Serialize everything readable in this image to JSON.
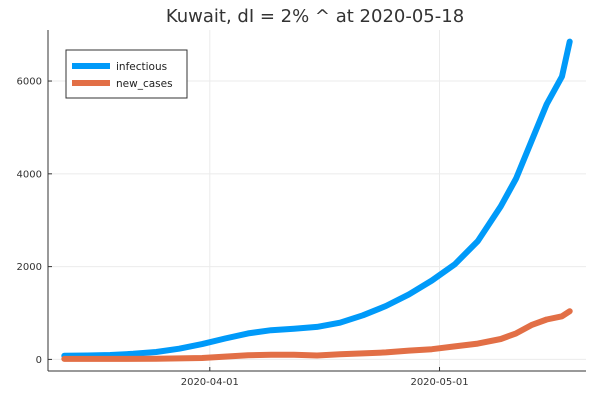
{
  "chart_data": {
    "type": "line",
    "title": "Kuwait,  dI = 2% ^ at 2020-05-18",
    "xlabel": "",
    "ylabel": "",
    "x_range": [
      "2020-03-13",
      "2020-05-18"
    ],
    "ylim": [
      -250,
      7100
    ],
    "x_ticks": [
      "2020-04-01",
      "2020-05-01"
    ],
    "y_ticks": [
      0,
      2000,
      4000,
      6000
    ],
    "grid": true,
    "legend_position": "top-left",
    "series": [
      {
        "name": "infectious",
        "color": "#009af9",
        "points": [
          [
            "2020-03-13",
            80
          ],
          [
            "2020-03-16",
            85
          ],
          [
            "2020-03-19",
            95
          ],
          [
            "2020-03-22",
            120
          ],
          [
            "2020-03-25",
            160
          ],
          [
            "2020-03-28",
            230
          ],
          [
            "2020-03-31",
            330
          ],
          [
            "2020-04-03",
            450
          ],
          [
            "2020-04-06",
            560
          ],
          [
            "2020-04-09",
            630
          ],
          [
            "2020-04-12",
            660
          ],
          [
            "2020-04-15",
            700
          ],
          [
            "2020-04-18",
            790
          ],
          [
            "2020-04-21",
            950
          ],
          [
            "2020-04-24",
            1150
          ],
          [
            "2020-04-27",
            1400
          ],
          [
            "2020-04-30",
            1700
          ],
          [
            "2020-05-03",
            2050
          ],
          [
            "2020-05-06",
            2550
          ],
          [
            "2020-05-09",
            3300
          ],
          [
            "2020-05-11",
            3900
          ],
          [
            "2020-05-13",
            4700
          ],
          [
            "2020-05-15",
            5500
          ],
          [
            "2020-05-17",
            6100
          ],
          [
            "2020-05-18",
            6850
          ]
        ]
      },
      {
        "name": "new_cases",
        "color": "#e26f46",
        "points": [
          [
            "2020-03-13",
            10
          ],
          [
            "2020-03-19",
            10
          ],
          [
            "2020-03-25",
            15
          ],
          [
            "2020-03-31",
            30
          ],
          [
            "2020-04-03",
            60
          ],
          [
            "2020-04-06",
            90
          ],
          [
            "2020-04-09",
            100
          ],
          [
            "2020-04-12",
            100
          ],
          [
            "2020-04-15",
            85
          ],
          [
            "2020-04-18",
            110
          ],
          [
            "2020-04-21",
            130
          ],
          [
            "2020-04-24",
            150
          ],
          [
            "2020-04-27",
            190
          ],
          [
            "2020-04-30",
            220
          ],
          [
            "2020-05-03",
            280
          ],
          [
            "2020-05-06",
            340
          ],
          [
            "2020-05-09",
            440
          ],
          [
            "2020-05-11",
            560
          ],
          [
            "2020-05-13",
            740
          ],
          [
            "2020-05-15",
            860
          ],
          [
            "2020-05-17",
            930
          ],
          [
            "2020-05-18",
            1040
          ]
        ]
      }
    ]
  }
}
